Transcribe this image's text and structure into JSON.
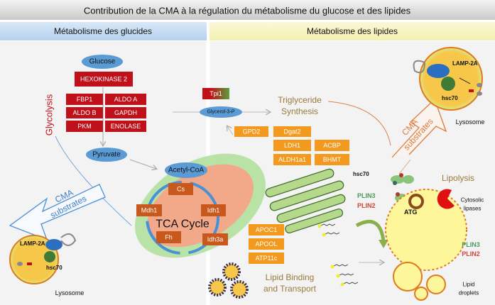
{
  "title": "Contribution de la CMA à la régulation du métabolisme du glucose et des lipides",
  "headers": {
    "left": "Métabolisme des glucides",
    "right": "Métabolisme des lipides"
  },
  "glucose": {
    "glucose": "Glucose",
    "hexokinase": "HEXOKINASE 2",
    "enzymes": [
      "FBP1",
      "ALDO A",
      "ALDO B",
      "GAPDH",
      "PKM",
      "ENOLASE"
    ],
    "pyruvate": "Pyruvate",
    "glycolysis": "Glycolysis",
    "cma_line1": "CMA",
    "cma_line2": "substrates",
    "lysosome": {
      "lamp": "LAMP-2A",
      "hsc70": "hsc70",
      "label": "Lysosome"
    }
  },
  "tca": {
    "acetyl": "Acetyl-CoA",
    "title": "TCA Cycle",
    "enzymes": [
      "Cs",
      "Mdh1",
      "Idh1",
      "Fh",
      "Idh3a"
    ]
  },
  "lipids": {
    "tpi1": "Tpi1",
    "glycerol": "Glycerol-3-P",
    "tg_line1": "Triglyceride",
    "tg_line2": "Synthesis",
    "enzymes": [
      "GPD2",
      "Dgat2",
      "LDH1",
      "ACBP",
      "ALDH1a1",
      "BHMT"
    ],
    "transport": [
      "APOC1",
      "APOOL",
      "ATP11c"
    ],
    "transport_line1": "Lipid Binding",
    "transport_line2": "and Transport",
    "cma_line1": "CMA",
    "cma_line2": "substrates",
    "lysosome": {
      "lamp": "LAMP-2A",
      "hsc70": "hsc70",
      "label": "Lysosome"
    },
    "hsc70": "hsc70",
    "plin3": "PLIN3",
    "plin2": "PLIN2",
    "lipolysis": "Lipolysis",
    "atg": "ATG",
    "lipases_line1": "Cytosolic",
    "lipases_line2": "lipases",
    "plin3b": "PLIN3",
    "plin2b": "PLIN2",
    "droplets_line1": "Lipid",
    "droplets_line2": "droplets"
  },
  "colors": {
    "glycolytic": "#c0101a",
    "tca": "#c8581c",
    "lipid_enzyme": "#f39a1e",
    "metabolite": "#5b9bd5",
    "plin3": "#4a9a5a",
    "plin2": "#d0443a"
  }
}
